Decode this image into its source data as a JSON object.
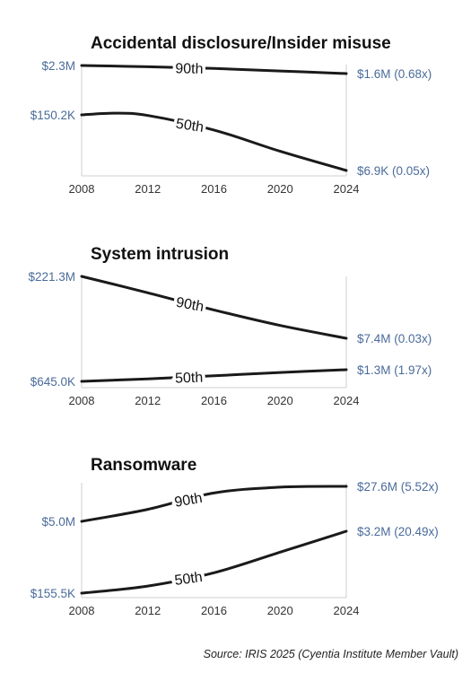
{
  "chart_data": [
    {
      "type": "line",
      "title": "Accidental disclosure/Insider misuse",
      "x_ticks": [
        "2008",
        "2012",
        "2016",
        "2020",
        "2024"
      ],
      "start_label": [
        "$2.3M",
        "$150.2K"
      ],
      "series": [
        {
          "name": "90th",
          "x": [
            2008,
            2012,
            2016,
            2020,
            2024
          ],
          "y": [
            2300000,
            2170000,
            2010000,
            1800000,
            1600000
          ],
          "end_label": "$1.6M (0.68x)"
        },
        {
          "name": "50th",
          "x": [
            2008,
            2010,
            2012,
            2016,
            2020,
            2024
          ],
          "y": [
            150200,
            165000,
            145000,
            65000,
            20000,
            6900
          ],
          "end_label": "$6.9K (0.05x)"
        }
      ]
    },
    {
      "type": "line",
      "title": "System intrusion",
      "x_ticks": [
        "2008",
        "2012",
        "2016",
        "2020",
        "2024"
      ],
      "start_label": [
        "$221.3M",
        "$645.0K"
      ],
      "series": [
        {
          "name": "90th",
          "x": [
            2008,
            2012,
            2016,
            2020,
            2024
          ],
          "y": [
            221300000,
            90000000,
            35000000,
            15000000,
            7400000
          ],
          "end_label": "$7.4M (0.03x)"
        },
        {
          "name": "50th",
          "x": [
            2008,
            2012,
            2016,
            2020,
            2024
          ],
          "y": [
            645000,
            750000,
            900000,
            1100000,
            1300000
          ],
          "end_label": "$1.3M (1.97x)"
        }
      ]
    },
    {
      "type": "line",
      "title": "Ransomware",
      "x_ticks": [
        "2008",
        "2012",
        "2016",
        "2020",
        "2024"
      ],
      "start_label": [
        "$5.0M",
        "$155.5K"
      ],
      "series": [
        {
          "name": "90th",
          "x": [
            2008,
            2012,
            2016,
            2020,
            2024
          ],
          "y": [
            5000000,
            9000000,
            20000000,
            26500000,
            27600000
          ],
          "end_label": "$27.6M (5.52x)"
        },
        {
          "name": "50th",
          "x": [
            2008,
            2012,
            2016,
            2020,
            2024
          ],
          "y": [
            155500,
            220000,
            420000,
            1150000,
            3200000
          ],
          "end_label": "$3.2M (20.49x)"
        }
      ]
    }
  ],
  "source": "Source: IRIS 2025 (Cyentia Institute Member Vault)"
}
